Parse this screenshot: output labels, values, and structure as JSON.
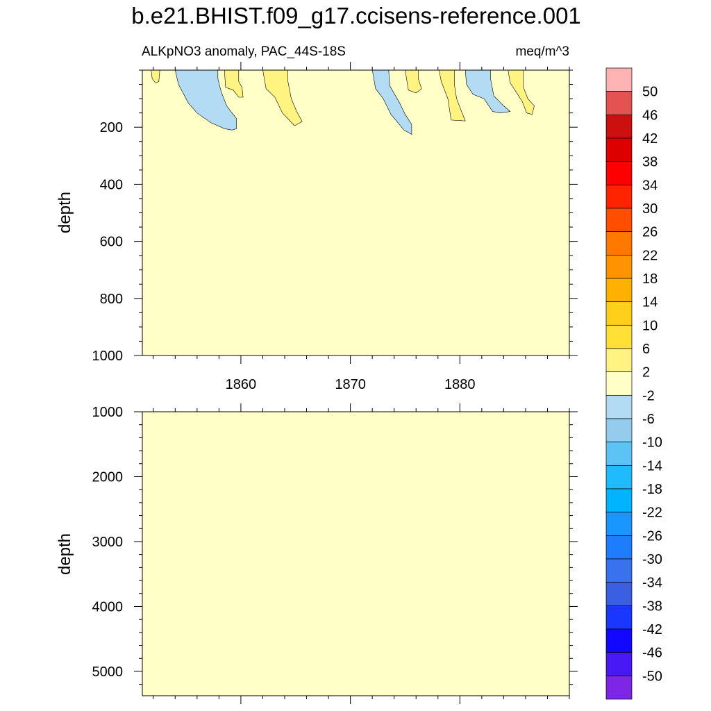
{
  "chart_data": {
    "type": "heatmap",
    "title": "b.e21.BHIST.f09_g17.ccisens-reference.001",
    "left_subtitle": "ALKpNO3 anomaly, PAC_44S-18S",
    "right_subtitle": "meq/m^3",
    "colors": {
      "background_fill": "#ffffc8",
      "negative_fill": "#b3dcf4",
      "positive_fill": "#fff382"
    },
    "x": {
      "range": [
        1851,
        1890
      ],
      "major_ticks": [
        1860,
        1870,
        1880
      ],
      "tick_labels": [
        "1860",
        "1870",
        "1880"
      ],
      "minor_step": 2
    },
    "upper_panel": {
      "ylabel": "depth",
      "ylim": [
        0,
        1000
      ],
      "y_ticks": [
        200,
        400,
        600,
        800,
        1000
      ],
      "y_tick_labels": [
        "200",
        "400",
        "600",
        "800",
        "1000"
      ],
      "y_minor_step": 50,
      "features": [
        {
          "sign": "positive",
          "polygon": [
            [
              1851.8,
              0
            ],
            [
              1851.9,
              30
            ],
            [
              1852.2,
              45
            ],
            [
              1852.5,
              40
            ],
            [
              1852.6,
              0
            ]
          ]
        },
        {
          "sign": "negative",
          "polygon": [
            [
              1854.0,
              0
            ],
            [
              1854.3,
              50
            ],
            [
              1855.2,
              115
            ],
            [
              1856.0,
              150
            ],
            [
              1857.3,
              185
            ],
            [
              1858.5,
              205
            ],
            [
              1859.2,
              210
            ],
            [
              1859.6,
              205
            ],
            [
              1859.6,
              170
            ],
            [
              1858.7,
              125
            ],
            [
              1858.2,
              75
            ],
            [
              1857.9,
              30
            ],
            [
              1857.9,
              0
            ]
          ]
        },
        {
          "sign": "positive",
          "polygon": [
            [
              1858.5,
              0
            ],
            [
              1858.6,
              60
            ],
            [
              1859.3,
              70
            ],
            [
              1859.8,
              95
            ],
            [
              1860.2,
              95
            ],
            [
              1860.1,
              60
            ],
            [
              1859.8,
              40
            ],
            [
              1859.8,
              0
            ]
          ]
        },
        {
          "sign": "positive",
          "polygon": [
            [
              1862.0,
              0
            ],
            [
              1862.3,
              65
            ],
            [
              1863.1,
              95
            ],
            [
              1863.8,
              150
            ],
            [
              1864.9,
              195
            ],
            [
              1865.6,
              180
            ],
            [
              1865.1,
              145
            ],
            [
              1864.6,
              100
            ],
            [
              1864.3,
              40
            ],
            [
              1864.3,
              0
            ]
          ]
        },
        {
          "sign": "negative",
          "polygon": [
            [
              1872.0,
              0
            ],
            [
              1872.3,
              65
            ],
            [
              1873.0,
              100
            ],
            [
              1873.7,
              155
            ],
            [
              1874.9,
              210
            ],
            [
              1875.6,
              225
            ],
            [
              1875.6,
              190
            ],
            [
              1875.0,
              155
            ],
            [
              1874.5,
              115
            ],
            [
              1873.6,
              55
            ],
            [
              1873.5,
              0
            ]
          ]
        },
        {
          "sign": "positive",
          "polygon": [
            [
              1875.0,
              0
            ],
            [
              1875.3,
              70
            ],
            [
              1876.0,
              80
            ],
            [
              1876.5,
              65
            ],
            [
              1876.2,
              30
            ],
            [
              1876.2,
              0
            ]
          ]
        },
        {
          "sign": "positive",
          "polygon": [
            [
              1878.1,
              0
            ],
            [
              1878.3,
              40
            ],
            [
              1878.9,
              100
            ],
            [
              1879.2,
              175
            ],
            [
              1880.5,
              178
            ],
            [
              1880.1,
              140
            ],
            [
              1879.7,
              100
            ],
            [
              1879.5,
              50
            ],
            [
              1879.5,
              0
            ]
          ]
        },
        {
          "sign": "negative",
          "polygon": [
            [
              1880.5,
              0
            ],
            [
              1880.6,
              50
            ],
            [
              1881.2,
              85
            ],
            [
              1882.2,
              100
            ],
            [
              1883.0,
              145
            ],
            [
              1883.7,
              150
            ],
            [
              1884.6,
              145
            ],
            [
              1884.0,
              125
            ],
            [
              1883.1,
              90
            ],
            [
              1882.8,
              30
            ],
            [
              1882.8,
              0
            ]
          ]
        },
        {
          "sign": "positive",
          "polygon": [
            [
              1884.4,
              0
            ],
            [
              1884.6,
              45
            ],
            [
              1885.2,
              80
            ],
            [
              1885.7,
              110
            ],
            [
              1886.1,
              150
            ],
            [
              1886.6,
              155
            ],
            [
              1886.8,
              125
            ],
            [
              1886.2,
              100
            ],
            [
              1885.8,
              60
            ],
            [
              1885.8,
              0
            ]
          ]
        }
      ]
    },
    "lower_panel": {
      "ylabel": "depth",
      "ylim": [
        1000,
        5375
      ],
      "y_ticks": [
        1000,
        2000,
        3000,
        4000,
        5000
      ],
      "y_tick_labels": [
        "1000",
        "2000",
        "3000",
        "4000",
        "5000"
      ],
      "y_minor_step": 200,
      "features": []
    },
    "colorbar": {
      "labels": [
        "50",
        "46",
        "42",
        "38",
        "34",
        "30",
        "26",
        "22",
        "18",
        "14",
        "10",
        "6",
        "2",
        "-2",
        "-6",
        "-10",
        "-14",
        "-18",
        "-22",
        "-26",
        "-30",
        "-34",
        "-38",
        "-42",
        "-46",
        "-50"
      ],
      "colors": [
        "#feb4b4",
        "#e45252",
        "#cc1010",
        "#de0000",
        "#ff0000",
        "#ff2400",
        "#ff4e00",
        "#ff7800",
        "#ff9400",
        "#ffb100",
        "#ffcf1a",
        "#ffe036",
        "#fff382",
        "#ffffc8",
        "#b3dcf4",
        "#95cbec",
        "#5cc3f4",
        "#1fbbfd",
        "#00b4ff",
        "#1a97ff",
        "#1e7dff",
        "#3a71ee",
        "#3a5fe0",
        "#1a37ff",
        "#1208ff",
        "#4818f5",
        "#7d26e5"
      ]
    }
  }
}
